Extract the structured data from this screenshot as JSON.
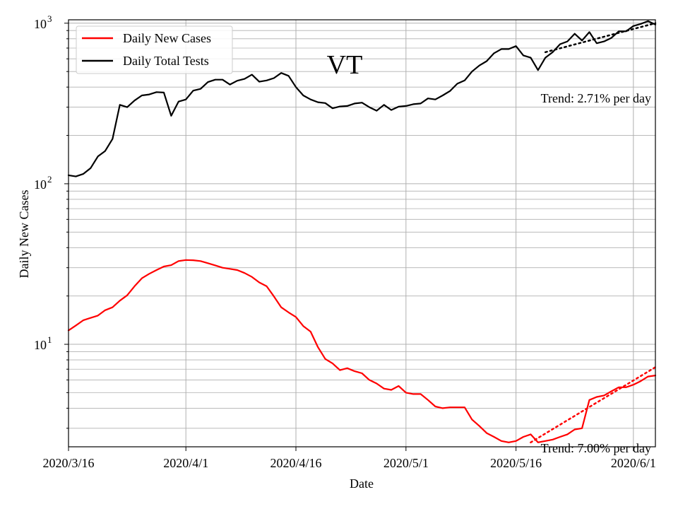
{
  "chart_data": {
    "type": "line",
    "title": "VT",
    "xlabel": "Date",
    "ylabel": "Daily New Cases",
    "yscale": "log",
    "ylim": [
      2.3,
      1050
    ],
    "xlim": [
      "2020-03-16",
      "2020-06-04"
    ],
    "grid": true,
    "legend_position": "top-left",
    "x_ticks": [
      {
        "date": "2020-03-16",
        "label": "2020/3/16"
      },
      {
        "date": "2020-04-01",
        "label": "2020/4/1"
      },
      {
        "date": "2020-04-16",
        "label": "2020/4/16"
      },
      {
        "date": "2020-05-01",
        "label": "2020/5/1"
      },
      {
        "date": "2020-05-16",
        "label": "2020/5/16"
      },
      {
        "date": "2020-06-01",
        "label": "2020/6/1"
      }
    ],
    "y_ticks": [
      {
        "value": 10,
        "base": "10",
        "exp": "1"
      },
      {
        "value": 100,
        "base": "10",
        "exp": "2"
      },
      {
        "value": 1000,
        "base": "10",
        "exp": "3"
      }
    ],
    "series": [
      {
        "name": "Daily New Cases",
        "color": "#ff0000",
        "style": "solid",
        "x": [
          "2020-03-16",
          "2020-03-17",
          "2020-03-18",
          "2020-03-19",
          "2020-03-20",
          "2020-03-21",
          "2020-03-22",
          "2020-03-23",
          "2020-03-24",
          "2020-03-25",
          "2020-03-26",
          "2020-03-27",
          "2020-03-28",
          "2020-03-29",
          "2020-03-30",
          "2020-03-31",
          "2020-04-01",
          "2020-04-02",
          "2020-04-03",
          "2020-04-04",
          "2020-04-05",
          "2020-04-06",
          "2020-04-07",
          "2020-04-08",
          "2020-04-09",
          "2020-04-10",
          "2020-04-11",
          "2020-04-12",
          "2020-04-13",
          "2020-04-14",
          "2020-04-15",
          "2020-04-16",
          "2020-04-17",
          "2020-04-18",
          "2020-04-19",
          "2020-04-20",
          "2020-04-21",
          "2020-04-22",
          "2020-04-23",
          "2020-04-24",
          "2020-04-25",
          "2020-04-26",
          "2020-04-27",
          "2020-04-28",
          "2020-04-29",
          "2020-04-30",
          "2020-05-01",
          "2020-05-02",
          "2020-05-03",
          "2020-05-04",
          "2020-05-05",
          "2020-05-06",
          "2020-05-07",
          "2020-05-08",
          "2020-05-09",
          "2020-05-10",
          "2020-05-11",
          "2020-05-12",
          "2020-05-13",
          "2020-05-14",
          "2020-05-15",
          "2020-05-16",
          "2020-05-17",
          "2020-05-18",
          "2020-05-19",
          "2020-05-20",
          "2020-05-21",
          "2020-05-22",
          "2020-05-23",
          "2020-05-24",
          "2020-05-25",
          "2020-05-26",
          "2020-05-27",
          "2020-05-28",
          "2020-05-29",
          "2020-05-30",
          "2020-05-31",
          "2020-06-01",
          "2020-06-02",
          "2020-06-03",
          "2020-06-04"
        ],
        "values": [
          12.2,
          13.1,
          14.1,
          14.6,
          15.1,
          16.3,
          17.0,
          18.7,
          20.2,
          23.0,
          25.8,
          27.5,
          29.0,
          30.5,
          31.1,
          33.0,
          33.5,
          33.4,
          33.0,
          32.0,
          31.0,
          30.0,
          29.5,
          29.0,
          27.8,
          26.3,
          24.3,
          23.0,
          19.9,
          17.0,
          15.8,
          14.8,
          13.0,
          12.0,
          9.6,
          8.1,
          7.6,
          6.9,
          7.1,
          6.8,
          6.6,
          6.0,
          5.7,
          5.3,
          5.2,
          5.5,
          5.0,
          4.9,
          4.9,
          4.5,
          4.1,
          4.0,
          4.05,
          4.05,
          4.05,
          3.4,
          3.1,
          2.8,
          2.65,
          2.5,
          2.45,
          2.5,
          2.65,
          2.75,
          2.45,
          2.5,
          2.55,
          2.65,
          2.75,
          2.95,
          3.0,
          4.5,
          4.7,
          4.8,
          5.1,
          5.4,
          5.4,
          5.6,
          5.9,
          6.3,
          6.4
        ]
      },
      {
        "name": "Daily Total Tests",
        "color": "#000000",
        "style": "solid",
        "x": [
          "2020-03-16",
          "2020-03-17",
          "2020-03-18",
          "2020-03-19",
          "2020-03-20",
          "2020-03-21",
          "2020-03-22",
          "2020-03-23",
          "2020-03-24",
          "2020-03-25",
          "2020-03-26",
          "2020-03-27",
          "2020-03-28",
          "2020-03-29",
          "2020-03-30",
          "2020-03-31",
          "2020-04-01",
          "2020-04-02",
          "2020-04-03",
          "2020-04-04",
          "2020-04-05",
          "2020-04-06",
          "2020-04-07",
          "2020-04-08",
          "2020-04-09",
          "2020-04-10",
          "2020-04-11",
          "2020-04-12",
          "2020-04-13",
          "2020-04-14",
          "2020-04-15",
          "2020-04-16",
          "2020-04-17",
          "2020-04-18",
          "2020-04-19",
          "2020-04-20",
          "2020-04-21",
          "2020-04-22",
          "2020-04-23",
          "2020-04-24",
          "2020-04-25",
          "2020-04-26",
          "2020-04-27",
          "2020-04-28",
          "2020-04-29",
          "2020-04-30",
          "2020-05-01",
          "2020-05-02",
          "2020-05-03",
          "2020-05-04",
          "2020-05-05",
          "2020-05-06",
          "2020-05-07",
          "2020-05-08",
          "2020-05-09",
          "2020-05-10",
          "2020-05-11",
          "2020-05-12",
          "2020-05-13",
          "2020-05-14",
          "2020-05-15",
          "2020-05-16",
          "2020-05-17",
          "2020-05-18",
          "2020-05-19",
          "2020-05-20",
          "2020-05-21",
          "2020-05-22",
          "2020-05-23",
          "2020-05-24",
          "2020-05-25",
          "2020-05-26",
          "2020-05-27",
          "2020-05-28",
          "2020-05-29",
          "2020-05-30",
          "2020-05-31",
          "2020-06-01",
          "2020-06-02",
          "2020-06-03",
          "2020-06-04"
        ],
        "values": [
          113,
          111,
          115,
          125,
          148,
          160,
          190,
          310,
          300,
          330,
          355,
          360,
          372,
          370,
          265,
          325,
          335,
          380,
          390,
          430,
          445,
          445,
          415,
          438,
          450,
          478,
          432,
          440,
          455,
          490,
          470,
          400,
          355,
          335,
          322,
          318,
          295,
          303,
          305,
          316,
          320,
          300,
          285,
          310,
          288,
          302,
          305,
          313,
          316,
          340,
          335,
          355,
          378,
          420,
          440,
          500,
          545,
          580,
          650,
          690,
          690,
          720,
          630,
          610,
          510,
          610,
          660,
          740,
          770,
          860,
          780,
          880,
          750,
          770,
          810,
          890,
          890,
          960,
          990,
          1030,
          980
        ]
      }
    ],
    "trend_lines": [
      {
        "series": "Daily New Cases",
        "color": "#ff0000",
        "style": "dotted",
        "x": [
          "2020-05-18",
          "2020-06-04"
        ],
        "values": [
          2.45,
          7.2
        ]
      },
      {
        "series": "Daily Total Tests",
        "color": "#000000",
        "style": "dotted",
        "x": [
          "2020-05-20",
          "2020-06-04"
        ],
        "values": [
          660,
          1000
        ]
      }
    ],
    "annotations": [
      {
        "text": "Trend: 2.71% per day",
        "series": "Daily Total Tests"
      },
      {
        "text": "Trend: 7.00% per day",
        "series": "Daily New Cases"
      }
    ]
  }
}
